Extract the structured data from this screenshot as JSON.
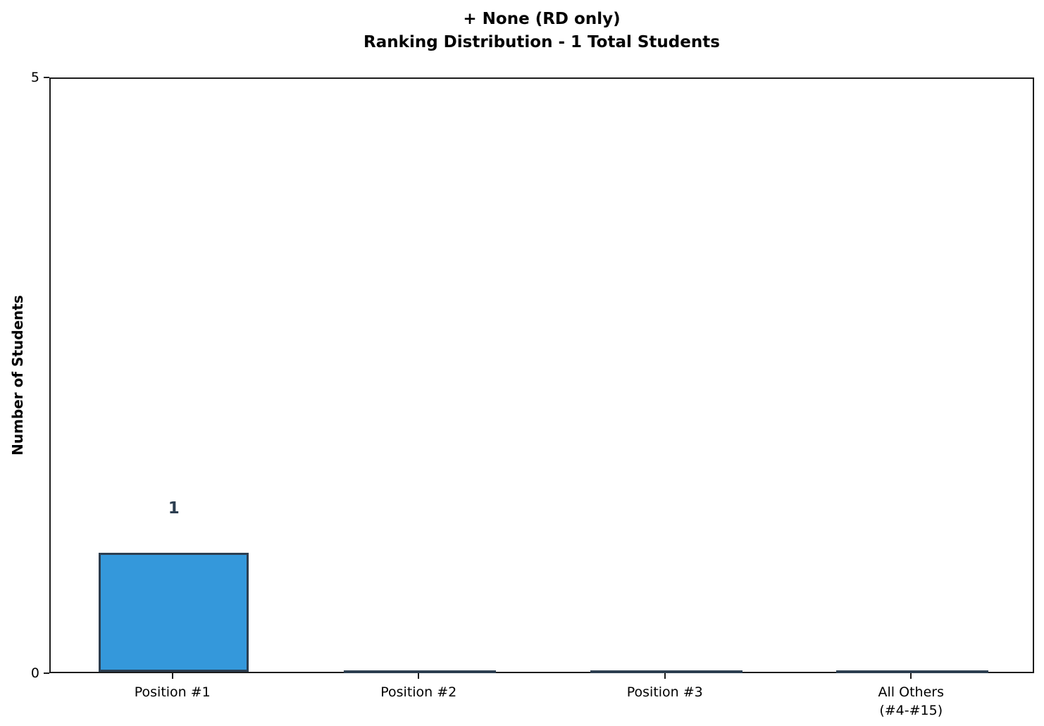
{
  "chart_data": {
    "type": "bar",
    "title_line1": "+ None (RD only)",
    "title_line2": "Ranking Distribution - 1 Total Students",
    "categories": [
      "Position #1",
      "Position #2",
      "Position #3",
      "All Others\n(#4-#15)"
    ],
    "values": [
      1,
      0,
      0,
      0
    ],
    "bar_labels": [
      "1",
      "",
      "",
      ""
    ],
    "total_students": 1,
    "ylabel": "Number of Students",
    "xlabel": "",
    "ylim": [
      0,
      5
    ],
    "yticks": [
      0,
      5
    ],
    "grid": false,
    "legend": false,
    "colors": {
      "bar_fill": "#3498db",
      "bar_edge": "#2c3e50",
      "value_label": "#2c3e50",
      "axis": "#1c1c1c",
      "text": "#000000"
    }
  }
}
